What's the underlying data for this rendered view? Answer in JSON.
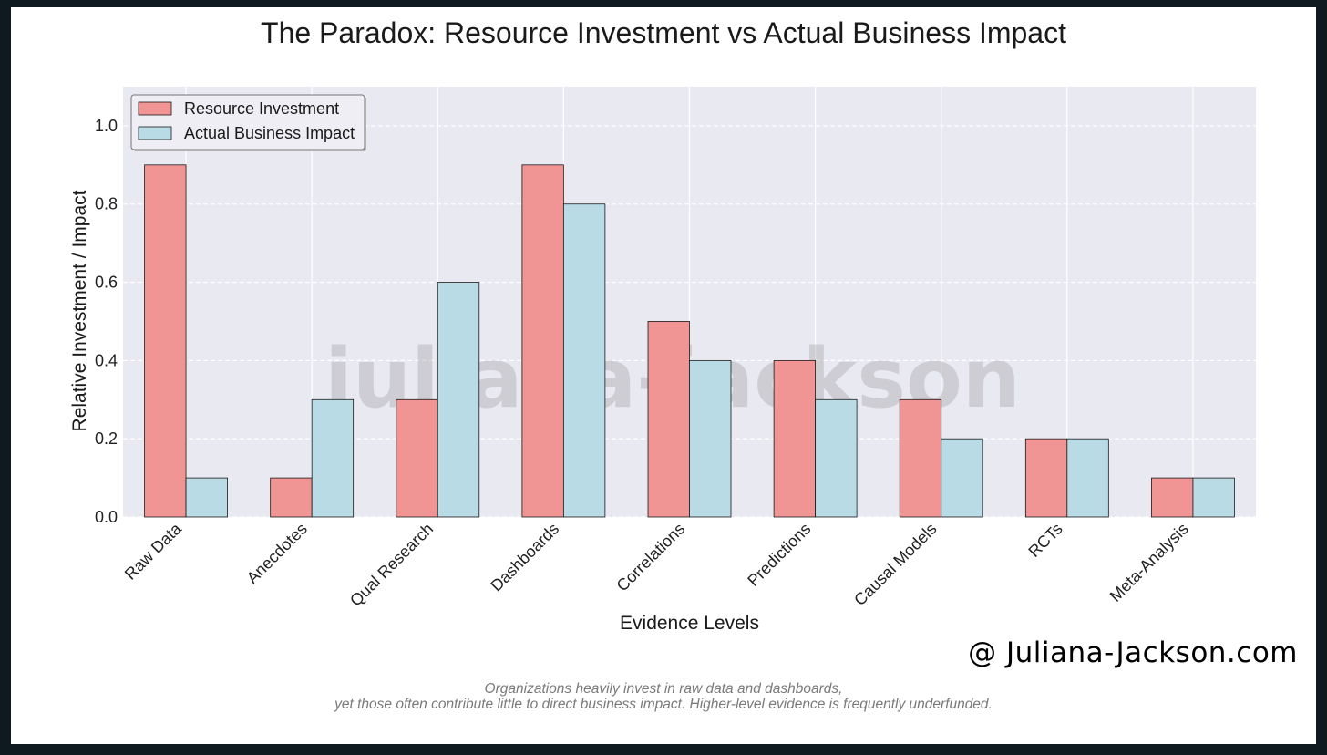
{
  "chart_data": {
    "type": "bar",
    "title": "The Paradox: Resource Investment vs Actual Business Impact",
    "xlabel": "Evidence Levels",
    "ylabel": "Relative Investment / Impact",
    "ylim": [
      0,
      1.1
    ],
    "yticks": [
      "0.0",
      "0.2",
      "0.4",
      "0.6",
      "0.8",
      "1.0"
    ],
    "grid": true,
    "legend_position": "top-left",
    "categories": [
      "Raw Data",
      "Anecdotes",
      "Qual Research",
      "Dashboards",
      "Correlations",
      "Predictions",
      "Causal Models",
      "RCTs",
      "Meta-Analysis"
    ],
    "series": [
      {
        "name": "Resource Investment",
        "color": "#f09494",
        "values": [
          0.9,
          0.1,
          0.3,
          0.9,
          0.5,
          0.4,
          0.3,
          0.2,
          0.1
        ]
      },
      {
        "name": "Actual Business Impact",
        "color": "#b8dbe6",
        "values": [
          0.1,
          0.3,
          0.6,
          0.8,
          0.4,
          0.3,
          0.2,
          0.2,
          0.1
        ]
      }
    ]
  },
  "watermark": "juliana-jackson",
  "brand": "@ Juliana-Jackson.com",
  "caption": {
    "line1": "Organizations heavily invest in raw data and dashboards,",
    "line2": "yet those often contribute little to direct business impact. Higher-level evidence is frequently underfunded."
  },
  "colors": {
    "plot_background": "#e9e9f1",
    "grid": "#ffffff",
    "frame_background": "#0e1a1f"
  }
}
